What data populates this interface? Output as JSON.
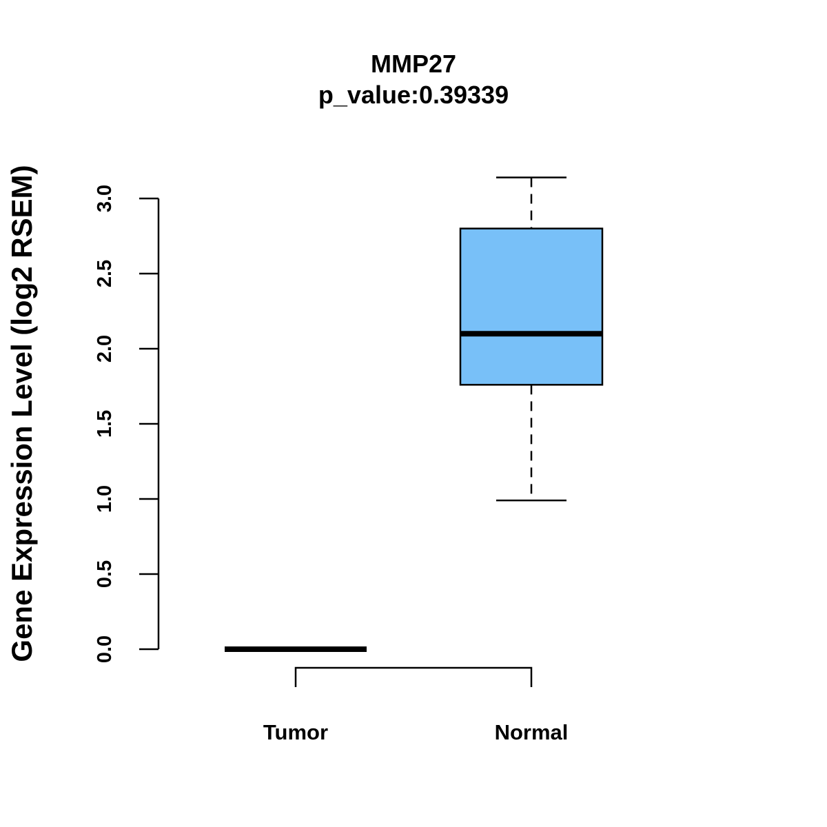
{
  "chart_data": {
    "type": "box",
    "title": "MMP27",
    "subtitle": "p_value:0.39339",
    "ylabel": "Gene Expression Level (log2 RSEM)",
    "xlabel": "",
    "ylim": [
      0,
      3.0
    ],
    "yticks": [
      "0.0",
      "0.5",
      "1.0",
      "1.5",
      "2.0",
      "2.5",
      "3.0"
    ],
    "categories": [
      "Tumor",
      "Normal"
    ],
    "boxes": [
      {
        "name": "Tumor",
        "min": 0,
        "q1": 0,
        "median": 0,
        "q3": 0,
        "max": 0
      },
      {
        "name": "Normal",
        "min": 0.99,
        "q1": 1.76,
        "median": 2.1,
        "q3": 2.8,
        "max": 3.14
      }
    ],
    "comparison_bracket": [
      "Tumor",
      "Normal"
    ],
    "colors": {
      "box_fill": "#78c0f8",
      "line": "#000000"
    },
    "grid": false
  }
}
